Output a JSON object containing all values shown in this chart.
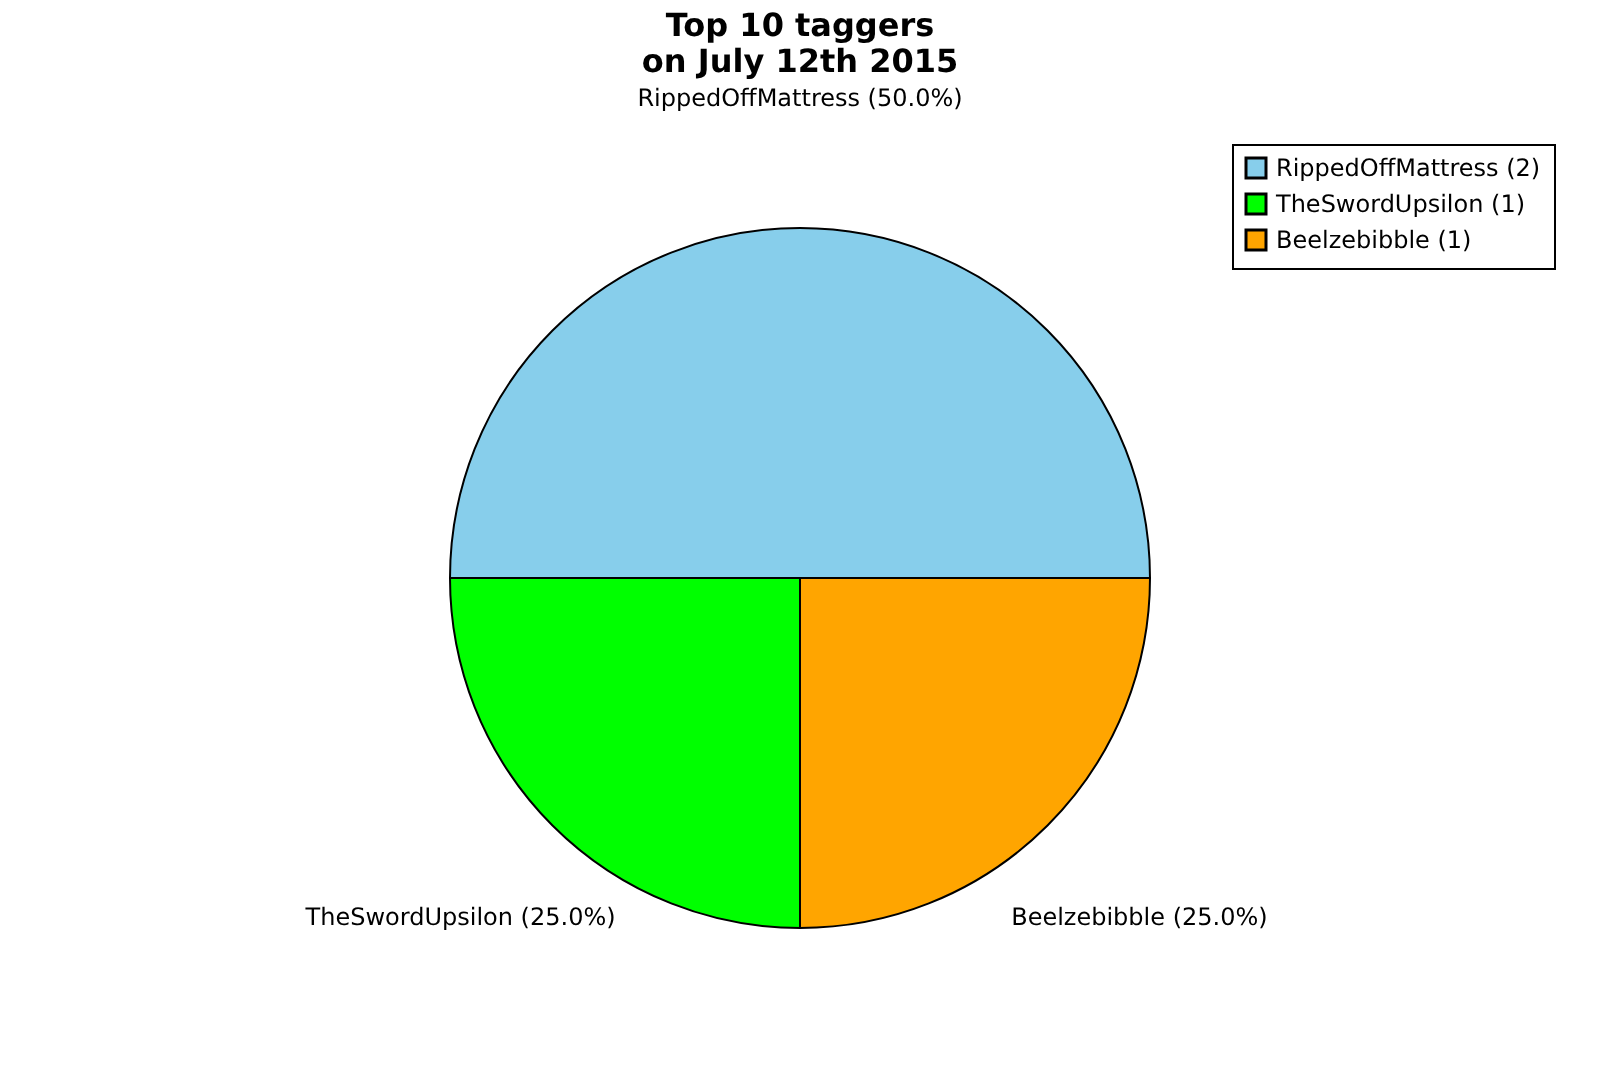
{
  "chart_data": {
    "type": "pie",
    "title": "Top 10 taggers\non July 12th 2015",
    "categories": [
      "RippedOffMattress (2)",
      "TheSwordUpsilon (1)",
      "Beelzebibble (1)"
    ],
    "values": [
      50,
      25,
      25
    ],
    "value_labels": [
      "RippedOffMattress (50.0%)",
      "TheSwordUpsilon (25.0%)",
      "Beelzebibble (25.0%)"
    ],
    "colors": [
      "#87ceeb",
      "#00ff00",
      "#ffa500"
    ],
    "legend": "top right"
  }
}
